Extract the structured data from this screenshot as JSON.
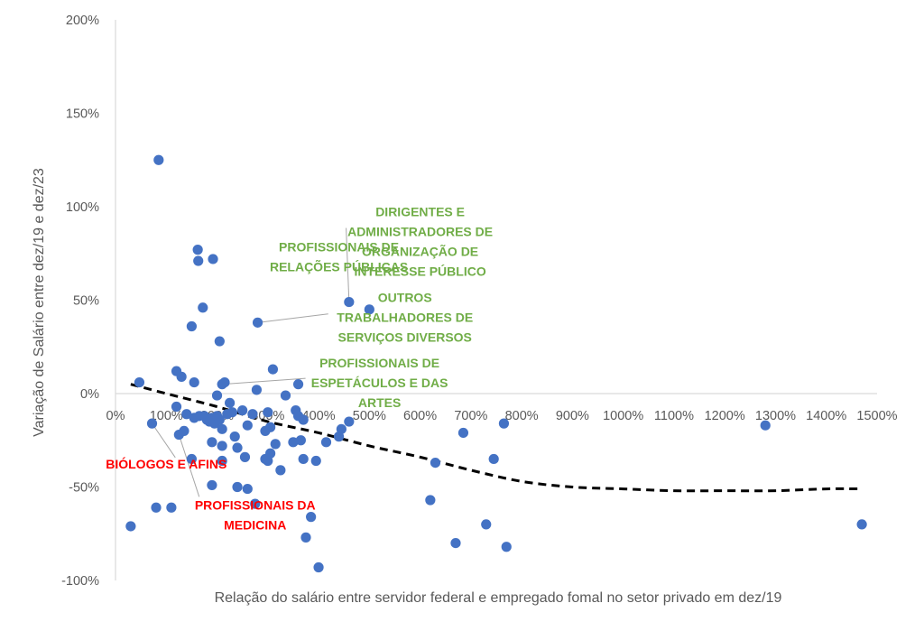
{
  "chart_data": {
    "type": "scatter",
    "title": "",
    "xlabel": "Relação do salário entre servidor federal e empregado fomal no setor privado em dez/19",
    "ylabel": "Variação de Salário entre dez/19 e dez/23",
    "xlim": [
      0,
      15
    ],
    "ylim": [
      -1,
      2
    ],
    "x_ticks": [
      0,
      1,
      2,
      3,
      4,
      5,
      6,
      7,
      8,
      9,
      10,
      11,
      12,
      13,
      14,
      15
    ],
    "x_tick_labels": [
      "0%",
      "100%",
      "200%",
      "300%",
      "400%",
      "500%",
      "600%",
      "700%",
      "800%",
      "900%",
      "1000%",
      "1100%",
      "1200%",
      "1300%",
      "1400%",
      "1500%"
    ],
    "y_ticks": [
      -1,
      -0.5,
      0,
      0.5,
      1,
      1.5,
      2
    ],
    "y_tick_labels": [
      "-100%",
      "-50%",
      "0%",
      "50%",
      "100%",
      "150%",
      "200%"
    ],
    "grid": false,
    "colors": {
      "points": "#4472C4",
      "trend": "#000000",
      "green": "#70AD47",
      "red": "#FF0000",
      "axis": "#D9D9D9",
      "text": "#595959",
      "leader": "#A6A6A6"
    },
    "points": [
      [
        0.85,
        1.25
      ],
      [
        1.62,
        0.77
      ],
      [
        1.63,
        0.71
      ],
      [
        1.92,
        0.72
      ],
      [
        1.72,
        0.46
      ],
      [
        1.5,
        0.36
      ],
      [
        2.05,
        0.28
      ],
      [
        4.6,
        0.49
      ],
      [
        5.0,
        0.45
      ],
      [
        2.8,
        0.38
      ],
      [
        0.47,
        0.06
      ],
      [
        1.2,
        0.12
      ],
      [
        1.3,
        0.09
      ],
      [
        1.55,
        0.06
      ],
      [
        2.1,
        0.05
      ],
      [
        2.15,
        0.06
      ],
      [
        3.1,
        0.13
      ],
      [
        3.6,
        0.05
      ],
      [
        2.78,
        0.02
      ],
      [
        3.35,
        -0.01
      ],
      [
        2.0,
        -0.01
      ],
      [
        1.2,
        -0.07
      ],
      [
        2.25,
        -0.05
      ],
      [
        1.4,
        -0.11
      ],
      [
        1.55,
        -0.13
      ],
      [
        1.65,
        -0.12
      ],
      [
        1.75,
        -0.12
      ],
      [
        1.8,
        -0.14
      ],
      [
        1.85,
        -0.15
      ],
      [
        1.9,
        -0.13
      ],
      [
        1.95,
        -0.16
      ],
      [
        2.0,
        -0.12
      ],
      [
        2.05,
        -0.14
      ],
      [
        2.1,
        -0.19
      ],
      [
        2.2,
        -0.11
      ],
      [
        2.3,
        -0.1
      ],
      [
        2.5,
        -0.09
      ],
      [
        2.6,
        -0.17
      ],
      [
        2.7,
        -0.11
      ],
      [
        3.0,
        -0.1
      ],
      [
        3.05,
        -0.18
      ],
      [
        3.55,
        -0.09
      ],
      [
        3.6,
        -0.12
      ],
      [
        3.7,
        -0.14
      ],
      [
        4.6,
        -0.15
      ],
      [
        4.45,
        -0.19
      ],
      [
        0.72,
        -0.16
      ],
      [
        1.25,
        -0.22
      ],
      [
        1.35,
        -0.2
      ],
      [
        1.9,
        -0.26
      ],
      [
        2.1,
        -0.28
      ],
      [
        2.35,
        -0.23
      ],
      [
        2.4,
        -0.29
      ],
      [
        2.55,
        -0.34
      ],
      [
        2.95,
        -0.2
      ],
      [
        3.0,
        -0.36
      ],
      [
        3.05,
        -0.32
      ],
      [
        3.15,
        -0.27
      ],
      [
        3.5,
        -0.26
      ],
      [
        3.65,
        -0.25
      ],
      [
        4.15,
        -0.26
      ],
      [
        4.4,
        -0.23
      ],
      [
        1.5,
        -0.35
      ],
      [
        2.1,
        -0.36
      ],
      [
        2.95,
        -0.35
      ],
      [
        3.7,
        -0.35
      ],
      [
        3.95,
        -0.36
      ],
      [
        3.25,
        -0.41
      ],
      [
        6.3,
        -0.37
      ],
      [
        1.9,
        -0.49
      ],
      [
        2.4,
        -0.5
      ],
      [
        2.6,
        -0.51
      ],
      [
        2.75,
        -0.59
      ],
      [
        0.3,
        -0.71
      ],
      [
        0.8,
        -0.61
      ],
      [
        1.1,
        -0.61
      ],
      [
        3.85,
        -0.66
      ],
      [
        3.75,
        -0.77
      ],
      [
        4.0,
        -0.93
      ],
      [
        6.2,
        -0.57
      ],
      [
        6.85,
        -0.21
      ],
      [
        7.65,
        -0.16
      ],
      [
        7.45,
        -0.35
      ],
      [
        7.3,
        -0.7
      ],
      [
        6.7,
        -0.8
      ],
      [
        7.7,
        -0.82
      ],
      [
        12.8,
        -0.17
      ],
      [
        14.7,
        -0.7
      ]
    ],
    "trendline": [
      [
        0.3,
        0.05
      ],
      [
        1.0,
        0.0
      ],
      [
        2.0,
        -0.07
      ],
      [
        3.0,
        -0.15
      ],
      [
        4.0,
        -0.21
      ],
      [
        5.0,
        -0.28
      ],
      [
        6.0,
        -0.34
      ],
      [
        7.0,
        -0.41
      ],
      [
        8.0,
        -0.47
      ],
      [
        9.0,
        -0.5
      ],
      [
        10.0,
        -0.51
      ],
      [
        11.0,
        -0.52
      ],
      [
        12.0,
        -0.52
      ],
      [
        13.0,
        -0.52
      ],
      [
        14.0,
        -0.51
      ],
      [
        14.7,
        -0.51
      ]
    ],
    "annotations": [
      {
        "id": "relacoes-publicas",
        "color": "green",
        "lines": [
          "PROFISSIONAIS DE",
          "RELAÇÕES PÚBLICAS"
        ],
        "anchor": [
          1.92,
          0.72
        ],
        "text_at": [
          4.4,
          0.76
        ],
        "leader": false
      },
      {
        "id": "dirigentes",
        "color": "green",
        "lines": [
          "DIRIGENTES E",
          "ADMINISTRADORES DE",
          "ORGANIZAÇÃO DE",
          "INTERESSE PÚBLICO"
        ],
        "anchor": [
          4.6,
          0.49
        ],
        "text_at": [
          6.0,
          0.95
        ],
        "leader": true
      },
      {
        "id": "outros-trabalhadores",
        "color": "green",
        "lines": [
          "OUTROS",
          "TRABALHADORES DE",
          "SERVIÇOS DIVERSOS"
        ],
        "anchor": [
          2.8,
          0.38
        ],
        "text_at": [
          5.7,
          0.49
        ],
        "leader": true
      },
      {
        "id": "espetaculos",
        "color": "green",
        "lines": [
          "PROFISSIONAIS DE",
          "ESPETÁCULOS E DAS",
          "ARTES"
        ],
        "anchor": [
          2.1,
          0.05
        ],
        "text_at": [
          5.2,
          0.14
        ],
        "leader": true
      },
      {
        "id": "biologos",
        "color": "red",
        "lines": [
          "BIÓLOGOS E AFINS"
        ],
        "anchor": [
          0.72,
          -0.16
        ],
        "text_at": [
          1.0,
          -0.4
        ],
        "leader": true
      },
      {
        "id": "medicina",
        "color": "red",
        "lines": [
          "PROFISSIONAIS DA",
          "MEDICINA"
        ],
        "anchor": [
          1.25,
          -0.22
        ],
        "text_at": [
          2.75,
          -0.62
        ],
        "leader": true
      }
    ]
  }
}
